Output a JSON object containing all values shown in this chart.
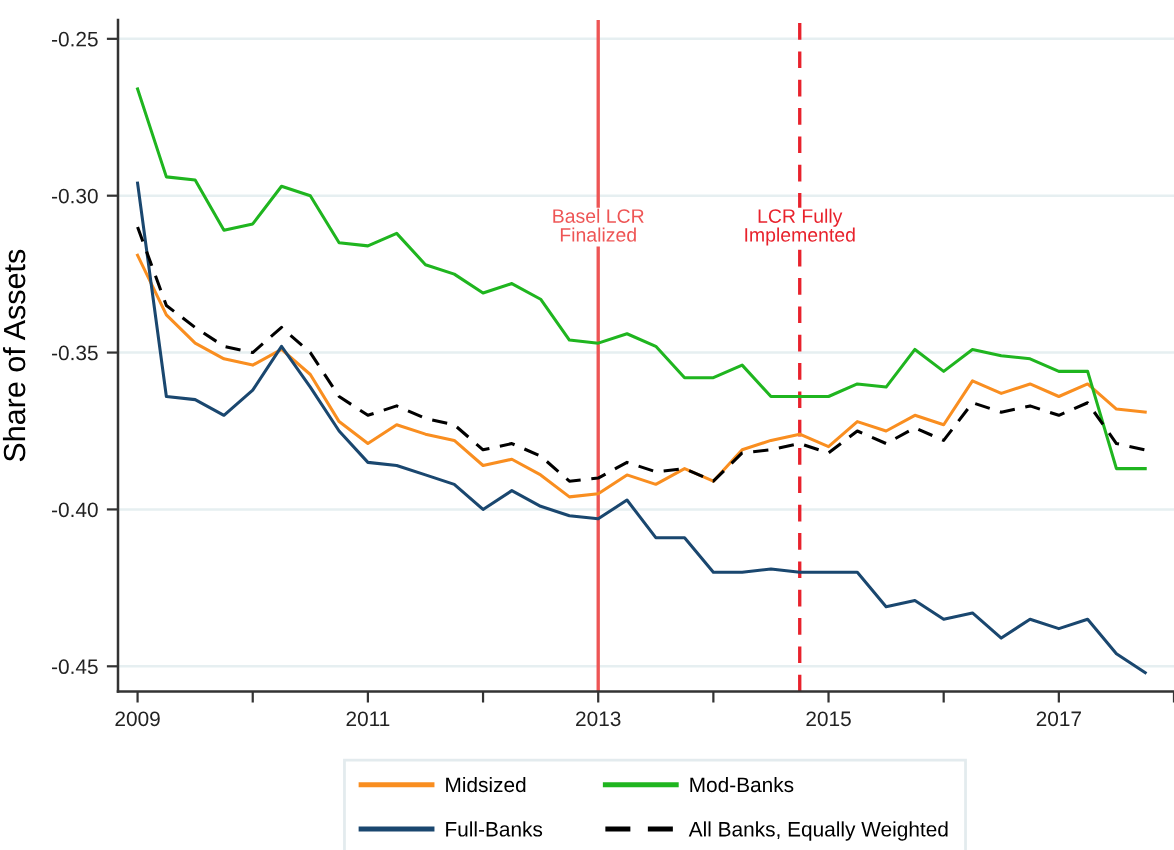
{
  "chart_data": {
    "type": "line",
    "ylabel": "Share of Assets",
    "x": [
      2009,
      2009.25,
      2009.5,
      2009.75,
      2010,
      2010.25,
      2010.5,
      2010.75,
      2011,
      2011.25,
      2011.5,
      2011.75,
      2012,
      2012.25,
      2012.5,
      2012.75,
      2013,
      2013.25,
      2013.5,
      2013.75,
      2014,
      2014.25,
      2014.5,
      2014.75,
      2015,
      2015.25,
      2015.5,
      2015.75,
      2016,
      2016.25,
      2016.5,
      2016.75,
      2017,
      2017.25,
      2017.5,
      2017.75
    ],
    "series": [
      {
        "name": "Midsized",
        "color": "#f98e20",
        "line_style": "solid",
        "values": [
          -0.319,
          -0.338,
          -0.347,
          -0.352,
          -0.354,
          -0.349,
          -0.357,
          -0.372,
          -0.379,
          -0.373,
          -0.376,
          -0.378,
          -0.386,
          -0.384,
          -0.389,
          -0.396,
          -0.395,
          -0.389,
          -0.392,
          -0.387,
          -0.391,
          -0.381,
          -0.378,
          -0.376,
          -0.38,
          -0.372,
          -0.375,
          -0.37,
          -0.373,
          -0.359,
          -0.363,
          -0.36,
          -0.364,
          -0.36,
          -0.368,
          -0.369
        ]
      },
      {
        "name": "Mod-Banks",
        "color": "#1fb51f",
        "line_style": "solid",
        "values": [
          -0.266,
          -0.294,
          -0.295,
          -0.311,
          -0.309,
          -0.297,
          -0.3,
          -0.315,
          -0.316,
          -0.312,
          -0.322,
          -0.325,
          -0.331,
          -0.328,
          -0.333,
          -0.346,
          -0.347,
          -0.344,
          -0.348,
          -0.358,
          -0.358,
          -0.354,
          -0.364,
          -0.364,
          -0.364,
          -0.36,
          -0.361,
          -0.349,
          -0.356,
          -0.349,
          -0.351,
          -0.352,
          -0.356,
          -0.356,
          -0.387,
          -0.387
        ]
      },
      {
        "name": "Full-Banks",
        "color": "#1a476f",
        "line_style": "solid",
        "values": [
          -0.296,
          -0.364,
          -0.365,
          -0.37,
          -0.362,
          -0.348,
          -0.361,
          -0.375,
          -0.385,
          -0.386,
          -0.389,
          -0.392,
          -0.4,
          -0.394,
          -0.399,
          -0.402,
          -0.403,
          -0.397,
          -0.409,
          -0.409,
          -0.42,
          -0.42,
          -0.419,
          -0.42,
          -0.42,
          -0.42,
          -0.431,
          -0.429,
          -0.435,
          -0.433,
          -0.441,
          -0.435,
          -0.438,
          -0.435,
          -0.446,
          -0.452
        ]
      },
      {
        "name": "All Banks, Equally Weighted",
        "color": "#000000",
        "line_style": "dashed",
        "values": [
          -0.31,
          -0.335,
          -0.342,
          -0.348,
          -0.35,
          -0.342,
          -0.35,
          -0.364,
          -0.37,
          -0.367,
          -0.371,
          -0.373,
          -0.381,
          -0.379,
          -0.383,
          -0.391,
          -0.39,
          -0.385,
          -0.388,
          -0.387,
          -0.391,
          -0.382,
          -0.381,
          -0.379,
          -0.382,
          -0.375,
          -0.379,
          -0.374,
          -0.378,
          -0.366,
          -0.369,
          -0.367,
          -0.37,
          -0.366,
          -0.379,
          -0.381
        ]
      }
    ],
    "xlim": [
      2008.83,
      2018.0
    ],
    "xticks": [
      2009,
      {
        "value": 2010,
        "label": null
      },
      2011,
      {
        "value": 2012,
        "label": null
      },
      2013,
      {
        "value": 2014,
        "label": null
      },
      2015,
      {
        "value": 2016,
        "label": null
      },
      2017,
      {
        "value": 2018,
        "label": null
      }
    ],
    "ylim": [
      -0.458,
      -0.244
    ],
    "yticks": [
      -0.25,
      {
        "value": -0.3,
        "label": "-0.30"
      },
      -0.35,
      {
        "value": -0.4,
        "label": "-0.40"
      },
      -0.45
    ],
    "grid": "y",
    "legend": "bottom",
    "ref_lines": [
      {
        "axis": "x",
        "value": 2013,
        "label": "Basel LCR\nFinalized",
        "color": "#ee5555",
        "line_style": "solid"
      },
      {
        "axis": "x",
        "value": 2014.75,
        "label": "LCR Fully\nImplemented",
        "color": "#e8222c",
        "line_style": "dashed"
      }
    ]
  }
}
